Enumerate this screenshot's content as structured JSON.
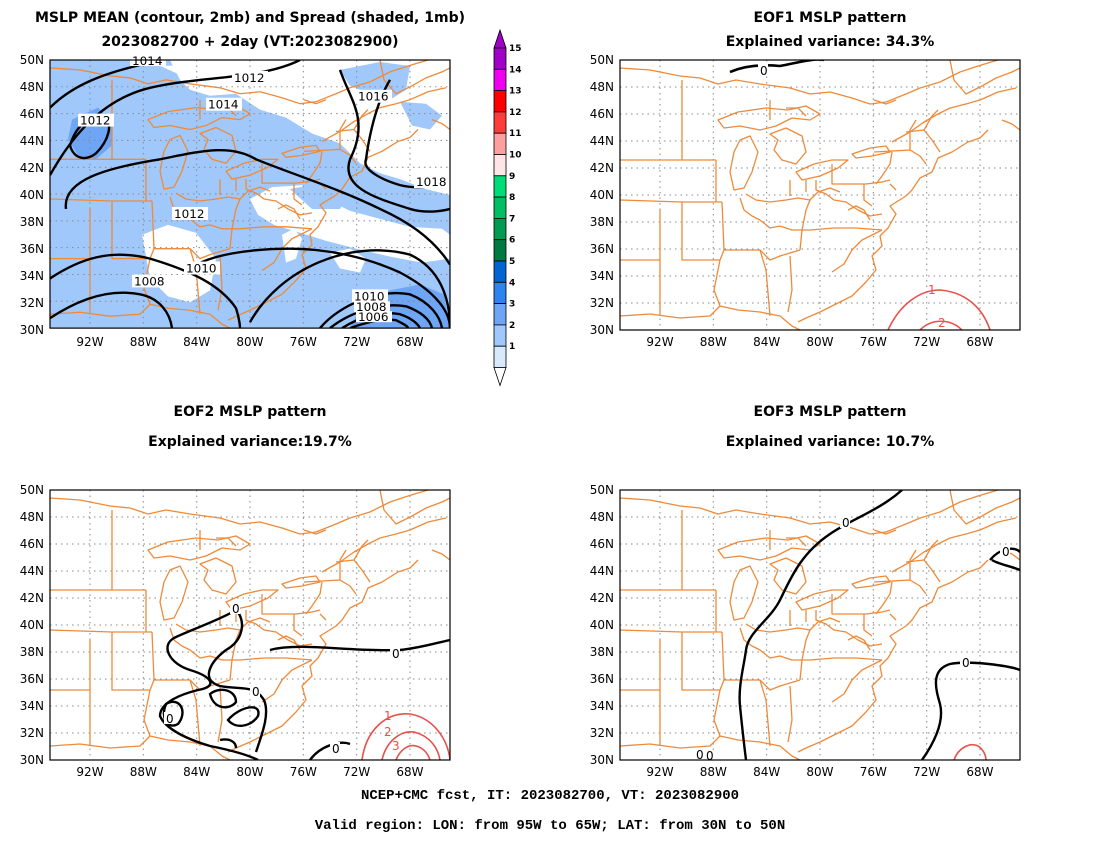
{
  "panels": [
    {
      "title1": "MSLP MEAN (contour, 2mb) and Spread (shaded, 1mb)",
      "title2": "2023082700 + 2day (VT:2023082900)"
    },
    {
      "title1": "EOF1 MSLP pattern",
      "title2": "Explained variance: 34.3%"
    },
    {
      "title1": "EOF2 MSLP pattern",
      "title2": "Explained variance:19.7%"
    },
    {
      "title1": "EOF3 MSLP pattern",
      "title2": "Explained variance: 10.7%"
    }
  ],
  "axes": {
    "lat_labels": [
      "50N",
      "48N",
      "46N",
      "44N",
      "42N",
      "40N",
      "38N",
      "36N",
      "34N",
      "32N",
      "30N"
    ],
    "lon_labels": [
      "92W",
      "88W",
      "84W",
      "80W",
      "76W",
      "72W",
      "68W"
    ]
  },
  "colorbar": {
    "labels": [
      "15",
      "14",
      "13",
      "12",
      "11",
      "10",
      "9",
      "8",
      "7",
      "6",
      "5",
      "4",
      "3",
      "2",
      "1"
    ],
    "colors": [
      "#a000c8",
      "#f000f0",
      "#ff0000",
      "#ff3c3c",
      "#ffa0a0",
      "#ffe6e6",
      "#00dc78",
      "#00be64",
      "#009b50",
      "#007a40",
      "#0064d2",
      "#2d83f0",
      "#6ea5f5",
      "#a0c8fa",
      "#d7eafd"
    ]
  },
  "colors": {
    "map_lines": "#ee8a3a",
    "positive_contour": "#e8504a",
    "negative_contour": "#000000",
    "spread_fill": "#a0c8fa",
    "spread_dark": "#6ea5f5"
  },
  "mean_contour_labels": [
    "1014",
    "1012",
    "1014",
    "1016",
    "1012",
    "1018",
    "1012",
    "1010",
    "1008",
    "1010",
    "1008",
    "1006"
  ],
  "eof1_labels": [
    "0",
    "1",
    "2"
  ],
  "eof2_labels": [
    "0",
    "0",
    "0",
    "0",
    "0",
    "1",
    "2",
    "3"
  ],
  "eof3_labels": [
    "0",
    "0",
    "0",
    "0",
    "0"
  ],
  "footer": {
    "line1": "NCEP+CMC fcst, IT: 2023082700, VT: 2023082900",
    "line2": "Valid region: LON: from 95W to 65W; LAT: from 30N to 50N"
  }
}
